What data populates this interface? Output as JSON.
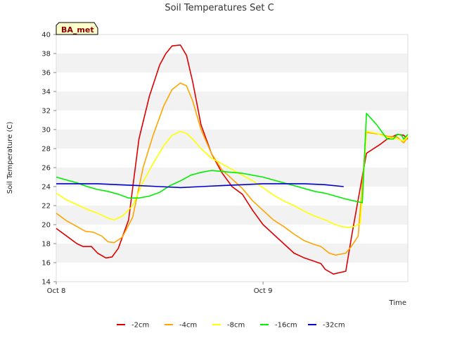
{
  "chart_data": {
    "type": "line",
    "title": "Soil Temperatures Set C",
    "xlabel": "Time",
    "ylabel": "Soil Temperature (C)",
    "ylim": [
      14,
      40
    ],
    "xlim": [
      0,
      1.7
    ],
    "yticks": [
      14,
      16,
      18,
      20,
      22,
      24,
      26,
      28,
      30,
      32,
      34,
      36,
      38,
      40
    ],
    "xticks": [
      {
        "value": 0,
        "label": "Oct 8"
      },
      {
        "value": 1,
        "label": "Oct 9"
      }
    ],
    "grid": "horizontal-bands",
    "legend_position": "bottom",
    "badge": "BA_met",
    "series": [
      {
        "name": "-2cm",
        "color": "#dd0000",
        "x": [
          0.0,
          0.05,
          0.1,
          0.13,
          0.17,
          0.2,
          0.24,
          0.27,
          0.3,
          0.35,
          0.4,
          0.45,
          0.5,
          0.53,
          0.56,
          0.6,
          0.63,
          0.66,
          0.7,
          0.75,
          0.8,
          0.85,
          0.9,
          0.95,
          1.0,
          1.05,
          1.1,
          1.15,
          1.2,
          1.24,
          1.28,
          1.3,
          1.34,
          1.4,
          1.43,
          1.5,
          1.57,
          1.6,
          1.65,
          1.68,
          1.7
        ],
        "y": [
          19.6,
          18.8,
          18.0,
          17.7,
          17.7,
          17.0,
          16.5,
          16.6,
          17.5,
          20.5,
          29.0,
          33.5,
          36.8,
          38.0,
          38.8,
          38.9,
          37.8,
          35.0,
          30.5,
          27.5,
          25.5,
          24.0,
          23.2,
          21.5,
          20.0,
          19.0,
          18.0,
          17.0,
          16.5,
          16.2,
          15.9,
          15.3,
          14.8,
          15.1,
          19.0,
          27.5,
          28.5,
          29.0,
          29.5,
          29.4,
          29.0
        ]
      },
      {
        "name": "-4cm",
        "color": "#ffa500",
        "x": [
          0.0,
          0.05,
          0.1,
          0.14,
          0.18,
          0.22,
          0.25,
          0.28,
          0.32,
          0.37,
          0.42,
          0.47,
          0.52,
          0.56,
          0.6,
          0.63,
          0.66,
          0.7,
          0.75,
          0.8,
          0.85,
          0.9,
          0.95,
          1.0,
          1.05,
          1.1,
          1.15,
          1.2,
          1.25,
          1.28,
          1.32,
          1.35,
          1.4,
          1.43,
          1.46,
          1.5,
          1.57,
          1.6,
          1.65,
          1.68,
          1.7
        ],
        "y": [
          21.2,
          20.4,
          19.8,
          19.3,
          19.2,
          18.8,
          18.2,
          18.1,
          18.7,
          20.8,
          26.0,
          29.5,
          32.5,
          34.2,
          34.9,
          34.6,
          33.0,
          30.0,
          27.5,
          25.8,
          24.8,
          23.8,
          22.5,
          21.5,
          20.5,
          19.8,
          19.0,
          18.3,
          17.9,
          17.7,
          17.0,
          16.8,
          17.0,
          17.8,
          18.8,
          29.7,
          29.5,
          29.3,
          29.2,
          28.6,
          29.2
        ]
      },
      {
        "name": "-8cm",
        "color": "#ffff00",
        "x": [
          0.0,
          0.05,
          0.1,
          0.15,
          0.2,
          0.25,
          0.28,
          0.32,
          0.37,
          0.42,
          0.47,
          0.52,
          0.56,
          0.6,
          0.63,
          0.66,
          0.7,
          0.75,
          0.8,
          0.85,
          0.9,
          0.95,
          1.0,
          1.05,
          1.1,
          1.15,
          1.2,
          1.25,
          1.3,
          1.35,
          1.38,
          1.41,
          1.44,
          1.47,
          1.5,
          1.55,
          1.6,
          1.65,
          1.68,
          1.7
        ],
        "y": [
          23.3,
          22.6,
          22.1,
          21.6,
          21.2,
          20.7,
          20.5,
          20.9,
          22.0,
          24.5,
          26.5,
          28.3,
          29.4,
          29.8,
          29.6,
          29.0,
          28.0,
          27.0,
          26.4,
          25.8,
          25.2,
          24.6,
          23.9,
          23.1,
          22.5,
          22.0,
          21.4,
          20.9,
          20.5,
          20.0,
          19.8,
          19.7,
          19.8,
          20.1,
          29.8,
          29.6,
          29.2,
          29.0,
          28.8,
          29.3
        ]
      },
      {
        "name": "-16cm",
        "color": "#00ee00",
        "x": [
          0.0,
          0.05,
          0.1,
          0.15,
          0.2,
          0.25,
          0.3,
          0.35,
          0.4,
          0.45,
          0.5,
          0.55,
          0.6,
          0.65,
          0.7,
          0.75,
          0.8,
          0.85,
          0.9,
          0.95,
          1.0,
          1.05,
          1.1,
          1.15,
          1.2,
          1.25,
          1.3,
          1.35,
          1.4,
          1.44,
          1.46,
          1.48,
          1.5,
          1.55,
          1.6,
          1.63,
          1.65,
          1.67,
          1.68,
          1.7
        ],
        "y": [
          25.0,
          24.7,
          24.4,
          24.0,
          23.7,
          23.5,
          23.2,
          22.8,
          22.8,
          23.0,
          23.4,
          24.1,
          24.6,
          25.2,
          25.5,
          25.7,
          25.6,
          25.5,
          25.4,
          25.2,
          25.0,
          24.7,
          24.4,
          24.1,
          23.8,
          23.5,
          23.3,
          23.0,
          22.7,
          22.5,
          22.4,
          22.3,
          31.7,
          30.5,
          29.0,
          29.0,
          29.5,
          29.4,
          29.0,
          29.5
        ]
      },
      {
        "name": "-32cm",
        "color": "#0000cc",
        "x": [
          0.0,
          0.1,
          0.2,
          0.3,
          0.4,
          0.5,
          0.6,
          0.7,
          0.8,
          0.9,
          1.0,
          1.1,
          1.2,
          1.3,
          1.39
        ],
        "y": [
          24.3,
          24.3,
          24.3,
          24.2,
          24.1,
          24.0,
          23.9,
          24.0,
          24.1,
          24.2,
          24.3,
          24.3,
          24.3,
          24.2,
          24.0
        ]
      }
    ]
  }
}
